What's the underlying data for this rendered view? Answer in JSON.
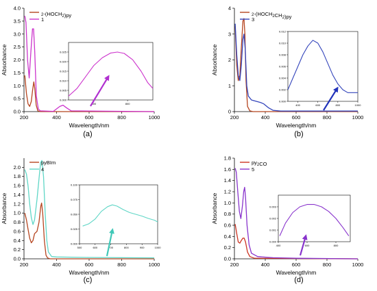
{
  "chart_data": [
    {
      "id": "a",
      "type": "line",
      "panel_label": "(a)",
      "xlabel": "Wavelength/nm",
      "ylabel": "Absorbance",
      "xlim": [
        200,
        1000
      ],
      "ylim": [
        0,
        4.0
      ],
      "xticks": [
        "200",
        "400",
        "600",
        "800",
        "1000"
      ],
      "yticks": [
        "0.0",
        "0.5",
        "1.0",
        "1.5",
        "2.0",
        "2.5",
        "3.0",
        "3.5",
        "4.0"
      ],
      "legend": "top-left",
      "series": [
        {
          "name": "2-(HOCH2)py",
          "color": "#b5441f",
          "points": [
            [
              205,
              1.4
            ],
            [
              215,
              0.7
            ],
            [
              225,
              0.3
            ],
            [
              235,
              0.2
            ],
            [
              245,
              0.4
            ],
            [
              252,
              0.8
            ],
            [
              260,
              1.15
            ],
            [
              266,
              0.9
            ],
            [
              275,
              0.25
            ],
            [
              285,
              0.03
            ],
            [
              300,
              0.0
            ],
            [
              1000,
              0.0
            ]
          ]
        },
        {
          "name": "1",
          "color": "#cc33cc",
          "points": [
            [
              205,
              3.7
            ],
            [
              212,
              3.45
            ],
            [
              222,
              2.0
            ],
            [
              232,
              1.3
            ],
            [
              242,
              2.3
            ],
            [
              252,
              3.2
            ],
            [
              259,
              3.2
            ],
            [
              266,
              2.3
            ],
            [
              276,
              0.6
            ],
            [
              288,
              0.1
            ],
            [
              300,
              0.03
            ],
            [
              380,
              0.01
            ],
            [
              420,
              0.2
            ],
            [
              440,
              0.25
            ],
            [
              460,
              0.15
            ],
            [
              490,
              0.03
            ],
            [
              1000,
              0.0
            ]
          ]
        }
      ],
      "arrow_color": "#b030d0",
      "inset": {
        "color": "#cc33cc",
        "xlim": [
          450,
          950
        ],
        "ylim": [
          0.0,
          0.03
        ],
        "xticks": [
          "600",
          "800"
        ],
        "yticks": [
          "0.000",
          "0.005",
          "0.010",
          "0.015",
          "0.020",
          "0.025"
        ],
        "points": [
          [
            450,
            0.002
          ],
          [
            500,
            0.006
          ],
          [
            550,
            0.012
          ],
          [
            600,
            0.018
          ],
          [
            650,
            0.022
          ],
          [
            700,
            0.0245
          ],
          [
            740,
            0.025
          ],
          [
            780,
            0.0243
          ],
          [
            830,
            0.021
          ],
          [
            880,
            0.015
          ],
          [
            920,
            0.009
          ],
          [
            950,
            0.006
          ]
        ]
      }
    },
    {
      "id": "b",
      "type": "line",
      "panel_label": "(b)",
      "xlabel": "Wavelength/nm",
      "ylabel": "Absorbance",
      "xlim": [
        200,
        1000
      ],
      "ylim": [
        0,
        4
      ],
      "xticks": [
        "200",
        "400",
        "600",
        "800",
        "1000"
      ],
      "yticks": [
        "0",
        "1",
        "2",
        "3",
        "4"
      ],
      "legend": "top-left",
      "series": [
        {
          "name": "2-(HOCH2CH2)py",
          "color": "#b5441f",
          "points": [
            [
              205,
              3.3
            ],
            [
              215,
              1.8
            ],
            [
              225,
              1.2
            ],
            [
              235,
              1.4
            ],
            [
              245,
              2.5
            ],
            [
              255,
              3.5
            ],
            [
              262,
              3.6
            ],
            [
              268,
              3.0
            ],
            [
              275,
              1.2
            ],
            [
              285,
              0.2
            ],
            [
              300,
              0.03
            ],
            [
              320,
              0.0
            ],
            [
              1000,
              0.0
            ]
          ]
        },
        {
          "name": "3",
          "color": "#3344bb",
          "points": [
            [
              205,
              3.4
            ],
            [
              215,
              2.2
            ],
            [
              225,
              1.4
            ],
            [
              235,
              1.2
            ],
            [
              245,
              1.8
            ],
            [
              255,
              2.8
            ],
            [
              262,
              3.0
            ],
            [
              270,
              2.4
            ],
            [
              280,
              1.0
            ],
            [
              290,
              0.6
            ],
            [
              310,
              0.45
            ],
            [
              340,
              0.4
            ],
            [
              370,
              0.35
            ],
            [
              390,
              0.3
            ],
            [
              420,
              0.15
            ],
            [
              450,
              0.05
            ],
            [
              500,
              0.02
            ],
            [
              600,
              0.02
            ],
            [
              1000,
              0.02
            ]
          ]
        }
      ],
      "arrow_color": "#2233bb",
      "inset": {
        "color": "#3344bb",
        "xlim": [
          300,
          1000
        ],
        "ylim": [
          0.0,
          0.012
        ],
        "xticks": [
          "400",
          "600",
          "800",
          "1000"
        ],
        "yticks": [
          "0.000",
          "0.002",
          "0.004",
          "0.006",
          "0.008",
          "0.010",
          "0.012"
        ],
        "points": [
          [
            300,
            0.002
          ],
          [
            350,
            0.004
          ],
          [
            400,
            0.006
          ],
          [
            450,
            0.008
          ],
          [
            500,
            0.0095
          ],
          [
            550,
            0.0105
          ],
          [
            600,
            0.01
          ],
          [
            650,
            0.0085
          ],
          [
            700,
            0.0065
          ],
          [
            750,
            0.0045
          ],
          [
            800,
            0.003
          ],
          [
            850,
            0.002
          ],
          [
            900,
            0.0015
          ],
          [
            950,
            0.0015
          ],
          [
            1000,
            0.0015
          ]
        ]
      }
    },
    {
      "id": "c",
      "type": "line",
      "panel_label": "(c)",
      "xlabel": "Wavelength/nm",
      "ylabel": "Absorbance",
      "xlim": [
        200,
        1000
      ],
      "ylim": [
        0,
        2.2
      ],
      "xticks": [
        "200",
        "400",
        "600",
        "800",
        "1000"
      ],
      "yticks": [
        "0.0",
        "0.2",
        "0.4",
        "0.6",
        "0.8",
        "1.0",
        "1.2",
        "1.4",
        "1.6",
        "1.8",
        "2.0"
      ],
      "legend": "top-left",
      "series": [
        {
          "name": "pyBIm",
          "color": "#b5441f",
          "points": [
            [
              205,
              1.0
            ],
            [
              215,
              0.85
            ],
            [
              225,
              0.65
            ],
            [
              235,
              0.45
            ],
            [
              245,
              0.35
            ],
            [
              255,
              0.4
            ],
            [
              265,
              0.55
            ],
            [
              280,
              0.6
            ],
            [
              292,
              0.8
            ],
            [
              303,
              1.15
            ],
            [
              308,
              1.22
            ],
            [
              315,
              1.0
            ],
            [
              325,
              0.4
            ],
            [
              335,
              0.08
            ],
            [
              345,
              0.02
            ],
            [
              360,
              0.0
            ],
            [
              1000,
              0.0
            ]
          ]
        },
        {
          "name": "4",
          "color": "#5fd6c6",
          "points": [
            [
              205,
              1.95
            ],
            [
              215,
              1.85
            ],
            [
              225,
              1.6
            ],
            [
              235,
              1.2
            ],
            [
              245,
              0.9
            ],
            [
              255,
              0.75
            ],
            [
              265,
              0.85
            ],
            [
              280,
              1.3
            ],
            [
              292,
              1.75
            ],
            [
              302,
              2.1
            ],
            [
              310,
              2.15
            ],
            [
              320,
              1.8
            ],
            [
              330,
              1.0
            ],
            [
              340,
              0.4
            ],
            [
              350,
              0.15
            ],
            [
              370,
              0.05
            ],
            [
              400,
              0.04
            ],
            [
              600,
              0.03
            ],
            [
              1000,
              0.02
            ]
          ]
        }
      ],
      "arrow_color": "#40c8b8",
      "inset": {
        "color": "#5fd6c6",
        "xlim": [
          500,
          1000
        ],
        "ylim": [
          0.0,
          0.1
        ],
        "xticks": [
          "500",
          "600",
          "700",
          "800",
          "900",
          "1000"
        ],
        "yticks": [
          "0.000",
          "0.025",
          "0.050",
          "0.075",
          "0.100"
        ],
        "points": [
          [
            520,
            0.03
          ],
          [
            560,
            0.034
          ],
          [
            600,
            0.042
          ],
          [
            640,
            0.055
          ],
          [
            680,
            0.063
          ],
          [
            710,
            0.066
          ],
          [
            740,
            0.064
          ],
          [
            780,
            0.058
          ],
          [
            820,
            0.053
          ],
          [
            860,
            0.05
          ],
          [
            900,
            0.047
          ],
          [
            940,
            0.043
          ],
          [
            980,
            0.04
          ],
          [
            1000,
            0.037
          ]
        ]
      }
    },
    {
      "id": "d",
      "type": "line",
      "panel_label": "(d)",
      "xlabel": "Wavelength/nm",
      "ylabel": "Absorbance",
      "xlim": [
        200,
        1000
      ],
      "ylim": [
        0,
        1.8
      ],
      "xticks": [
        "200",
        "400",
        "600",
        "800",
        "1000"
      ],
      "yticks": [
        "0.0",
        "0.2",
        "0.4",
        "0.6",
        "0.8",
        "1.0",
        "1.2",
        "1.4",
        "1.6",
        "1.8"
      ],
      "legend": "top-left",
      "series": [
        {
          "name": "py2CO",
          "color": "#cc3322",
          "points": [
            [
              205,
              0.62
            ],
            [
              215,
              0.45
            ],
            [
              225,
              0.3
            ],
            [
              235,
              0.28
            ],
            [
              245,
              0.33
            ],
            [
              255,
              0.37
            ],
            [
              263,
              0.37
            ],
            [
              272,
              0.3
            ],
            [
              285,
              0.12
            ],
            [
              300,
              0.04
            ],
            [
              330,
              0.01
            ],
            [
              1000,
              0.0
            ]
          ]
        },
        {
          "name": "5",
          "color": "#8833cc",
          "points": [
            [
              205,
              1.62
            ],
            [
              212,
              1.55
            ],
            [
              222,
              1.2
            ],
            [
              232,
              0.85
            ],
            [
              242,
              0.72
            ],
            [
              252,
              0.95
            ],
            [
              260,
              1.2
            ],
            [
              266,
              1.28
            ],
            [
              272,
              1.1
            ],
            [
              282,
              0.6
            ],
            [
              295,
              0.25
            ],
            [
              310,
              0.1
            ],
            [
              350,
              0.04
            ],
            [
              450,
              0.02
            ],
            [
              600,
              0.01
            ],
            [
              1000,
              0.0
            ]
          ]
        }
      ],
      "arrow_color": "#8833cc",
      "inset": {
        "color": "#8833cc",
        "xlim": [
          400,
          900
        ],
        "ylim": [
          0.0,
          0.004
        ],
        "xticks": [
          "400",
          "600",
          "800"
        ],
        "yticks": [
          "0.000",
          "0.001",
          "0.002",
          "0.003"
        ],
        "points": [
          [
            410,
            0.0005
          ],
          [
            450,
            0.0016
          ],
          [
            500,
            0.0025
          ],
          [
            550,
            0.003
          ],
          [
            600,
            0.0032
          ],
          [
            650,
            0.0032
          ],
          [
            700,
            0.003
          ],
          [
            750,
            0.0026
          ],
          [
            800,
            0.002
          ],
          [
            850,
            0.0012
          ],
          [
            890,
            0.0005
          ]
        ]
      }
    }
  ]
}
